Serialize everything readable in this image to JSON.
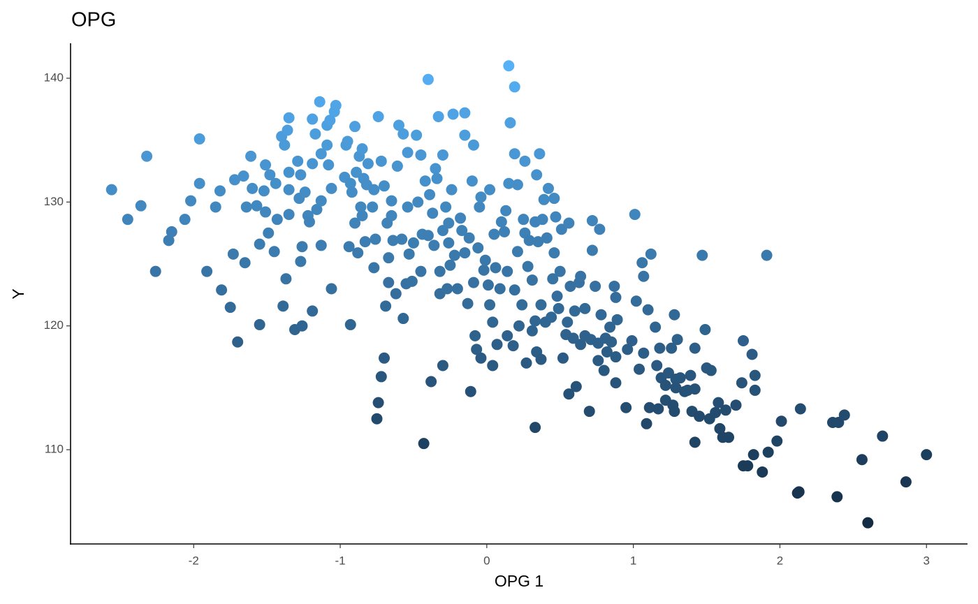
{
  "chart_data": {
    "type": "scatter",
    "title": "OPG",
    "x_label": "OPG 1",
    "y_label": "Y",
    "xlim": [
      -2.84,
      3.28
    ],
    "ylim": [
      102.39,
      142.82
    ],
    "xticks": [
      -2,
      -1,
      0,
      1,
      2,
      3
    ],
    "yticks": [
      110,
      120,
      130,
      140
    ],
    "grid": false,
    "color_scale": {
      "low": "#132B43",
      "high": "#56B1F7"
    },
    "x": [
      -2.56,
      -2.45,
      -2.36,
      -2.32,
      -2.26,
      -2.17,
      -2.15,
      -2.06,
      -2.02,
      -1.96,
      -1.96,
      -1.91,
      -1.85,
      -1.82,
      -1.81,
      -1.75,
      -1.73,
      -1.72,
      -1.7,
      -1.66,
      -1.65,
      -1.64,
      -1.61,
      -1.6,
      -1.57,
      -1.55,
      -1.55,
      -1.52,
      -1.51,
      -1.51,
      -1.49,
      -1.48,
      -1.45,
      -1.44,
      -1.43,
      -1.4,
      -1.39,
      -1.38,
      -1.37,
      -1.36,
      -1.35,
      -1.35,
      -1.35,
      -1.35,
      -1.31,
      -1.29,
      -1.28,
      -1.27,
      -1.26,
      -1.27,
      -1.26,
      -1.24,
      -1.22,
      -1.21,
      -1.19,
      -1.19,
      -1.19,
      -1.17,
      -1.16,
      -1.14,
      -1.13,
      -1.13,
      -1.13,
      -1.09,
      -1.09,
      -1.07,
      -1.06,
      -1.06,
      -1.08,
      -1.03,
      -1.04,
      -0.97,
      -0.94,
      -0.93,
      -0.96,
      -0.95,
      -0.93,
      -0.92,
      -0.9,
      -0.9,
      -0.89,
      -0.88,
      -0.87,
      -0.86,
      -0.85,
      -0.85,
      -0.84,
      -0.83,
      -0.82,
      -0.81,
      -0.78,
      -0.77,
      -0.77,
      -0.76,
      -0.75,
      -0.74,
      -0.74,
      -0.72,
      -0.72,
      -0.7,
      -0.7,
      -0.69,
      -0.68,
      -0.67,
      -0.67,
      -0.65,
      -0.65,
      -0.64,
      -0.62,
      -0.61,
      -0.6,
      -0.58,
      -0.57,
      -0.57,
      -0.55,
      -0.54,
      -0.54,
      -0.53,
      -0.51,
      -0.5,
      -0.48,
      -0.47,
      -0.45,
      -0.45,
      -0.44,
      -0.43,
      -0.42,
      -0.4,
      -0.4,
      -0.39,
      -0.38,
      -0.37,
      -0.36,
      -0.35,
      -0.34,
      -0.33,
      -0.32,
      -0.32,
      -0.3,
      -0.3,
      -0.3,
      -0.28,
      -0.27,
      -0.26,
      -0.26,
      -0.25,
      -0.24,
      -0.23,
      -0.22,
      -0.2,
      -0.18,
      -0.17,
      -0.15,
      -0.15,
      -0.15,
      -0.13,
      -0.12,
      -0.11,
      -0.1,
      -0.09,
      -0.09,
      -0.08,
      -0.07,
      -0.06,
      -0.05,
      -0.04,
      -0.04,
      -0.02,
      -0.01,
      0.01,
      0.02,
      0.02,
      0.04,
      0.04,
      0.05,
      0.06,
      0.07,
      0.09,
      0.1,
      0.12,
      0.13,
      0.14,
      0.14,
      0.15,
      0.15,
      0.16,
      0.18,
      0.19,
      0.19,
      0.19,
      0.21,
      0.21,
      0.22,
      0.24,
      0.25,
      0.26,
      0.26,
      0.27,
      0.28,
      0.29,
      0.31,
      0.31,
      0.33,
      0.33,
      0.33,
      0.34,
      0.34,
      0.35,
      0.36,
      0.37,
      0.37,
      0.38,
      0.39,
      0.4,
      0.41,
      0.42,
      0.44,
      0.45,
      0.46,
      0.46,
      0.47,
      0.48,
      0.49,
      0.5,
      0.51,
      0.52,
      0.54,
      0.55,
      0.56,
      0.56,
      0.57,
      0.59,
      0.6,
      0.61,
      0.63,
      0.64,
      0.64,
      0.67,
      0.67,
      0.7,
      0.71,
      0.72,
      0.72,
      0.74,
      0.76,
      0.76,
      0.77,
      0.78,
      0.8,
      0.81,
      0.82,
      0.84,
      0.85,
      0.87,
      0.88,
      0.88,
      0.88,
      0.89,
      0.95,
      0.96,
      0.99,
      1.01,
      1.02,
      1.04,
      1.06,
      1.07,
      1.07,
      1.09,
      1.1,
      1.11,
      1.12,
      1.15,
      1.16,
      1.17,
      1.18,
      1.19,
      1.22,
      1.22,
      1.24,
      1.26,
      1.27,
      1.28,
      1.28,
      1.29,
      1.29,
      1.3,
      1.32,
      1.35,
      1.37,
      1.39,
      1.4,
      1.42,
      1.42,
      1.42,
      1.45,
      1.47,
      1.49,
      1.5,
      1.52,
      1.53,
      1.56,
      1.58,
      1.59,
      1.61,
      1.63,
      1.65,
      1.7,
      1.74,
      1.75,
      1.75,
      1.78,
      1.81,
      1.83,
      1.83,
      1.82,
      1.88,
      1.91,
      1.92,
      1.98,
      2.01,
      2.12,
      2.13,
      2.14,
      2.36,
      2.4,
      2.39,
      2.44,
      2.56,
      2.6,
      2.7,
      2.86,
      3.0
    ],
    "y": [
      131.0,
      128.6,
      129.7,
      133.7,
      124.4,
      126.9,
      127.6,
      128.6,
      130.1,
      135.1,
      131.5,
      124.4,
      129.6,
      130.9,
      122.9,
      121.5,
      125.8,
      131.8,
      118.7,
      132.1,
      125.1,
      129.6,
      133.7,
      131.1,
      129.7,
      126.6,
      120.1,
      130.9,
      129.2,
      133.0,
      127.5,
      132.2,
      126.0,
      131.5,
      128.6,
      135.3,
      121.6,
      134.6,
      123.8,
      135.8,
      131.0,
      136.8,
      132.4,
      129.0,
      119.7,
      133.3,
      130.3,
      132.2,
      120.0,
      125.2,
      126.4,
      130.8,
      128.9,
      128.4,
      121.2,
      136.7,
      133.1,
      135.5,
      129.4,
      138.1,
      126.5,
      133.9,
      130.1,
      134.6,
      136.2,
      136.6,
      131.1,
      123.0,
      133.0,
      137.8,
      137.3,
      132.0,
      126.4,
      120.1,
      134.6,
      134.9,
      131.5,
      130.8,
      136.1,
      128.3,
      132.4,
      125.9,
      133.7,
      129.6,
      134.3,
      128.9,
      131.9,
      126.8,
      131.4,
      133.1,
      129.6,
      124.7,
      131.0,
      127.0,
      112.5,
      136.9,
      113.8,
      133.3,
      115.9,
      131.3,
      117.4,
      121.6,
      128.3,
      123.5,
      125.5,
      130.1,
      128.9,
      126.9,
      122.6,
      132.9,
      136.2,
      127.0,
      120.6,
      135.5,
      123.4,
      134.0,
      129.6,
      125.8,
      123.6,
      126.7,
      135.4,
      130.0,
      124.4,
      133.8,
      127.4,
      110.5,
      131.7,
      139.9,
      127.3,
      130.6,
      115.5,
      129.1,
      126.5,
      132.7,
      131.9,
      136.9,
      122.6,
      124.4,
      127.7,
      116.8,
      133.8,
      129.6,
      123.0,
      126.7,
      128.3,
      124.9,
      131.0,
      137.1,
      125.7,
      123.0,
      128.7,
      127.7,
      135.4,
      137.2,
      125.9,
      121.8,
      127.1,
      114.7,
      131.7,
      123.5,
      134.6,
      119.2,
      118.1,
      126.3,
      129.6,
      117.4,
      130.4,
      124.5,
      125.3,
      123.3,
      131.0,
      121.7,
      120.3,
      116.8,
      127.4,
      124.7,
      118.5,
      123.0,
      128.4,
      127.6,
      129.3,
      119.2,
      124.4,
      141.0,
      131.5,
      136.4,
      118.4,
      122.9,
      139.3,
      133.9,
      131.4,
      126.0,
      120.0,
      121.7,
      128.6,
      133.3,
      127.5,
      117.0,
      124.8,
      126.9,
      123.7,
      119.6,
      120.4,
      128.4,
      111.8,
      132.2,
      117.9,
      126.8,
      133.9,
      121.7,
      117.3,
      128.6,
      130.2,
      120.3,
      127.1,
      131.1,
      120.7,
      123.8,
      130.3,
      125.9,
      128.8,
      122.4,
      121.4,
      124.4,
      127.8,
      117.4,
      119.3,
      120.3,
      114.5,
      128.3,
      123.2,
      119.0,
      121.2,
      115.1,
      123.5,
      124.0,
      118.5,
      119.2,
      121.4,
      113.1,
      118.9,
      126.1,
      128.5,
      123.2,
      118.6,
      117.2,
      127.8,
      120.9,
      116.4,
      119.0,
      117.9,
      119.9,
      118.7,
      123.2,
      122.3,
      115.4,
      117.5,
      120.5,
      113.4,
      118.1,
      118.8,
      129.0,
      122.0,
      116.5,
      125.1,
      124.0,
      117.8,
      112.1,
      121.3,
      113.4,
      125.8,
      119.9,
      116.8,
      113.3,
      118.2,
      115.8,
      114.0,
      115.2,
      116.2,
      118.2,
      113.6,
      120.9,
      113.1,
      115.7,
      115.0,
      118.9,
      115.8,
      114.7,
      114.8,
      116.0,
      113.1,
      118.2,
      110.6,
      114.9,
      112.7,
      125.7,
      119.7,
      116.6,
      112.5,
      116.4,
      113.0,
      113.8,
      111.7,
      111.0,
      113.2,
      111.0,
      113.6,
      115.4,
      118.8,
      108.7,
      108.7,
      117.7,
      116.0,
      114.8,
      109.6,
      108.2,
      125.7,
      109.8,
      110.7,
      112.3,
      106.5,
      106.6,
      113.3,
      112.2,
      112.2,
      106.2,
      112.8,
      109.2,
      104.1,
      111.1,
      107.4,
      109.6
    ]
  }
}
